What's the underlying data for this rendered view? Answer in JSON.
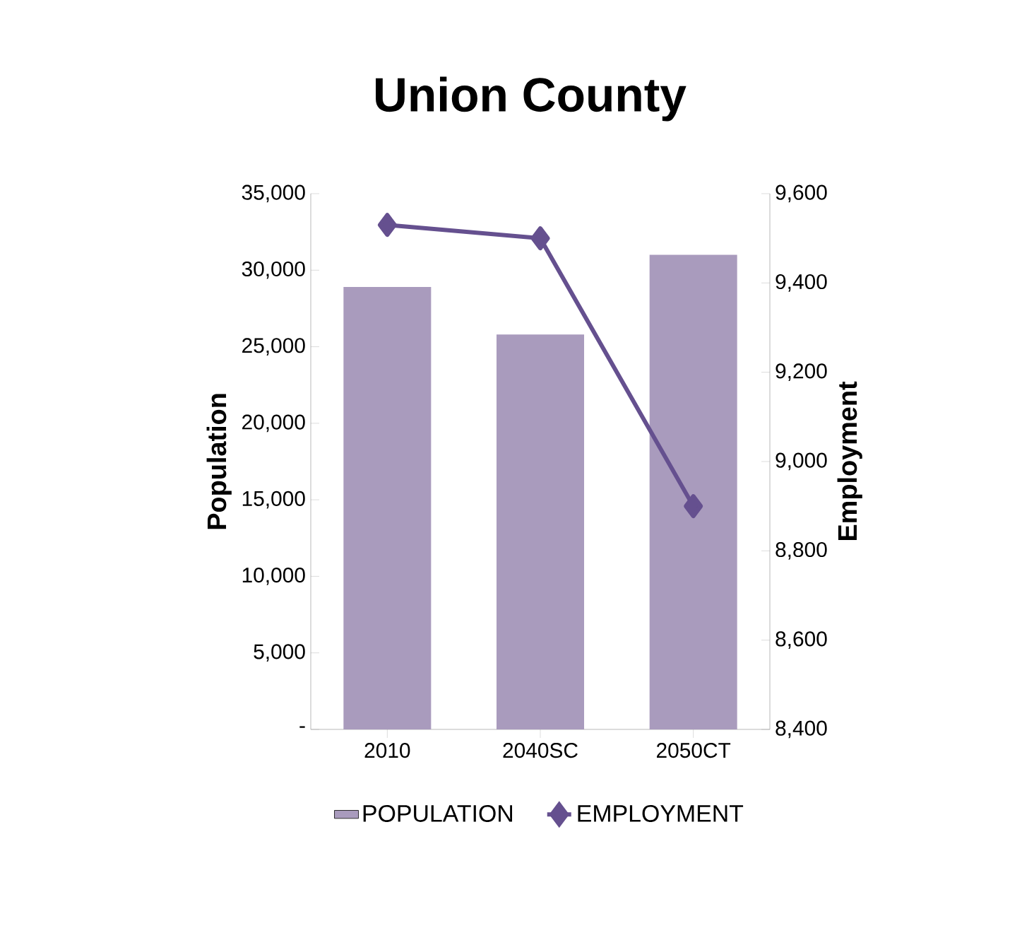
{
  "chart_data": {
    "type": "bar",
    "title": "Union County",
    "ylabel": "Population",
    "y2label": "Employment",
    "categories": [
      "2010",
      "2040SC",
      "2050CT"
    ],
    "series": [
      {
        "name": "POPULATION",
        "color": "#a99bbd",
        "values": [
          28900,
          25800,
          31000
        ]
      },
      {
        "name": "EMPLOYMENT",
        "type": "line",
        "axis": "y2",
        "color": "#65508f",
        "values": [
          9530,
          9500,
          8900
        ]
      }
    ],
    "ylim": [
      0,
      35000
    ],
    "yticks": [
      {
        "value": 0,
        "label": "-"
      },
      {
        "value": 5000,
        "label": "5,000"
      },
      {
        "value": 10000,
        "label": "10,000"
      },
      {
        "value": 15000,
        "label": "15,000"
      },
      {
        "value": 20000,
        "label": "20,000"
      },
      {
        "value": 25000,
        "label": "25,000"
      },
      {
        "value": 30000,
        "label": "30,000"
      },
      {
        "value": 35000,
        "label": "35,000"
      }
    ],
    "y2lim": [
      8400,
      9600
    ],
    "y2ticks": [
      {
        "value": 8400,
        "label": "8,400"
      },
      {
        "value": 8600,
        "label": "8,600"
      },
      {
        "value": 8800,
        "label": "8,800"
      },
      {
        "value": 9000,
        "label": "9,000"
      },
      {
        "value": 9200,
        "label": "9,200"
      },
      {
        "value": 9400,
        "label": "9,400"
      },
      {
        "value": 9600,
        "label": "9,600"
      }
    ],
    "legend": "bottom",
    "marker": "diamond",
    "grid": false
  }
}
